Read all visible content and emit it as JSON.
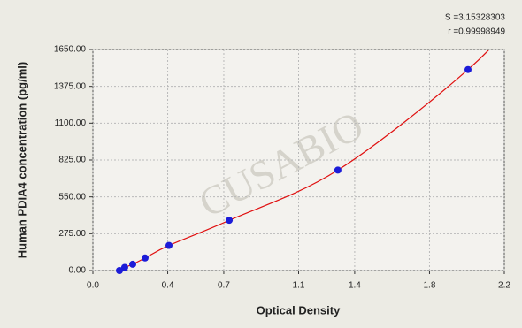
{
  "chart_data": {
    "type": "scatter",
    "xlabel": "Optical Density",
    "ylabel": "Human PDIA4 concentration (pg/ml)",
    "annotations": [
      "S =3.15328303",
      "r =0.99998949"
    ],
    "watermark": "CUSABIO",
    "x": [
      0.142,
      0.17,
      0.213,
      0.279,
      0.407,
      0.729,
      1.31,
      2.006
    ],
    "values": [
      0,
      23.44,
      46.88,
      93.75,
      187.5,
      375,
      750,
      1500
    ],
    "color": "#1c1cd8",
    "line_color": "#e01010",
    "xlim": [
      0,
      2.2
    ],
    "xticks": [
      {
        "value": 0,
        "label": "0.0"
      },
      0.4,
      0.7,
      1.1,
      1.4,
      1.8,
      2.2
    ],
    "ylim": [
      0,
      1650
    ],
    "yticks": [
      {
        "value": 0,
        "label": "0.00"
      },
      {
        "value": 275,
        "label": "275.00"
      },
      {
        "value": 550,
        "label": "550.00"
      },
      {
        "value": 825,
        "label": "825.00"
      },
      {
        "value": 1100,
        "label": "1100.00"
      },
      {
        "value": 1375,
        "label": "1375.00"
      },
      {
        "value": 1650,
        "label": "1650.00"
      }
    ],
    "grid": true
  }
}
